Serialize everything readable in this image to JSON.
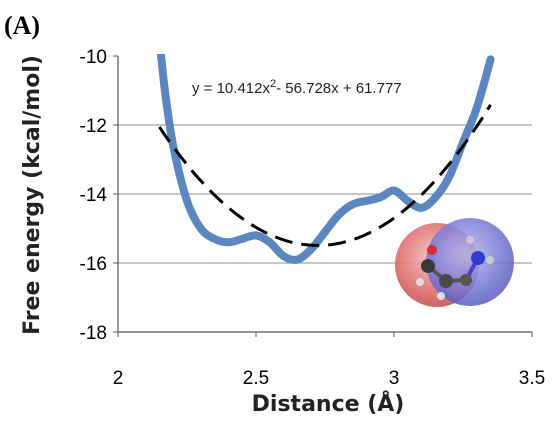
{
  "panel_label": "(A)",
  "chart_data": {
    "type": "line",
    "xlabel": "Distance (Å)",
    "ylabel": "Free energy (kcal/mol)",
    "xlim": [
      2,
      3.5
    ],
    "ylim": [
      -18,
      -10
    ],
    "xticks": [
      "2",
      "2.5",
      "3",
      "3.5"
    ],
    "yticks": [
      "-10",
      "-12",
      "-14",
      "-16",
      "-18"
    ],
    "grid": "horizontal",
    "equation": {
      "prefix": "y = 10.412x",
      "sup": "2",
      "suffix": "- 56.728x + 61.777"
    },
    "series": [
      {
        "kind": "data",
        "color": "#5b87c0",
        "x": [
          2.15,
          2.17,
          2.2,
          2.25,
          2.3,
          2.35,
          2.4,
          2.45,
          2.5,
          2.55,
          2.6,
          2.65,
          2.7,
          2.75,
          2.8,
          2.85,
          2.9,
          2.95,
          3.0,
          3.05,
          3.1,
          3.15,
          3.2,
          3.25,
          3.3,
          3.35
        ],
        "y": [
          -9.5,
          -11.0,
          -12.6,
          -14.2,
          -15.0,
          -15.3,
          -15.4,
          -15.3,
          -15.2,
          -15.4,
          -15.8,
          -15.9,
          -15.6,
          -15.1,
          -14.6,
          -14.3,
          -14.2,
          -14.1,
          -13.9,
          -14.2,
          -14.4,
          -14.1,
          -13.5,
          -12.5,
          -11.5,
          -10.1
        ]
      },
      {
        "kind": "trendline",
        "color": "#000000",
        "dashed": true,
        "coefficients": [
          10.412,
          -56.728,
          61.777
        ],
        "x_range": [
          2.15,
          3.35
        ]
      }
    ],
    "molecule_colors": {
      "left_sphere": "#e06a6a",
      "right_sphere": "#6a6ad8"
    }
  }
}
